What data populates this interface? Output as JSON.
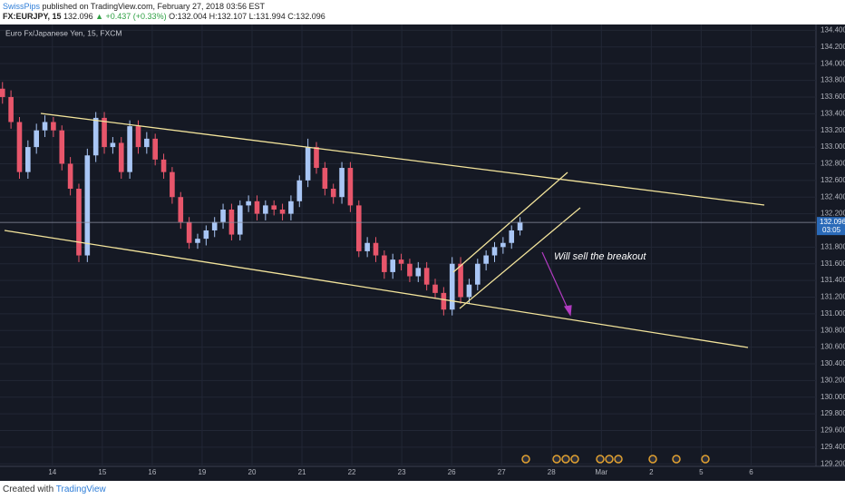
{
  "header": {
    "author": "SwissPips",
    "published": "published on TradingView.com, February 27, 2018 03:56 EST",
    "symbol": "FX:EURJPY, 15",
    "price": "132.096",
    "change": "▲ +0.437 (+0.33%)",
    "ohlc": "O:132.004 H:132.107 L:131.994 C:132.096"
  },
  "footer": {
    "text": "Created with",
    "brand": "TradingView"
  },
  "chart_data": {
    "type": "candlestick",
    "title": "Euro Fx/Japanese Yen, 15, FXCM",
    "annotation": "Will sell the breakout",
    "up_color": "#a9c6f5",
    "down_color": "#e8566b",
    "grid": true,
    "last_price": {
      "value": 132.096,
      "label": "132.096"
    },
    "countdown": "03:05",
    "xlim": [
      -0.05,
      16.3
    ],
    "ylim": [
      129.17,
      134.47
    ],
    "xticks": [
      {
        "value": 1,
        "label": "14"
      },
      {
        "value": 2,
        "label": "15"
      },
      {
        "value": 3,
        "label": "16"
      },
      {
        "value": 4,
        "label": "19"
      },
      {
        "value": 5,
        "label": "20"
      },
      {
        "value": 6,
        "label": "21"
      },
      {
        "value": 7,
        "label": "22"
      },
      {
        "value": 8,
        "label": "23"
      },
      {
        "value": 9,
        "label": "26"
      },
      {
        "value": 10,
        "label": "27"
      },
      {
        "value": 11,
        "label": "28"
      },
      {
        "value": 12,
        "label": "Mar"
      },
      {
        "value": 13,
        "label": "2"
      },
      {
        "value": 14,
        "label": "5"
      },
      {
        "value": 15,
        "label": "6"
      }
    ],
    "yticks": [
      {
        "value": 134.4,
        "label": "134.400"
      },
      {
        "value": 134.2,
        "label": "134.200"
      },
      {
        "value": 134.0,
        "label": "134.000"
      },
      {
        "value": 133.8,
        "label": "133.800"
      },
      {
        "value": 133.6,
        "label": "133.600"
      },
      {
        "value": 133.4,
        "label": "133.400"
      },
      {
        "value": 133.2,
        "label": "133.200"
      },
      {
        "value": 133.0,
        "label": "133.000"
      },
      {
        "value": 132.8,
        "label": "132.800"
      },
      {
        "value": 132.6,
        "label": "132.600"
      },
      {
        "value": 132.4,
        "label": "132.400"
      },
      {
        "value": 132.2,
        "label": "132.200"
      },
      {
        "value": 131.8,
        "label": "131.800"
      },
      {
        "value": 131.6,
        "label": "131.600"
      },
      {
        "value": 131.4,
        "label": "131.400"
      },
      {
        "value": 131.2,
        "label": "131.200"
      },
      {
        "value": 131.0,
        "label": "131.000"
      },
      {
        "value": 130.8,
        "label": "130.800"
      },
      {
        "value": 130.6,
        "label": "130.600"
      },
      {
        "value": 130.4,
        "label": "130.400"
      },
      {
        "value": 130.2,
        "label": "130.200"
      },
      {
        "value": 130.0,
        "label": "130.000"
      },
      {
        "value": 129.8,
        "label": "129.800"
      },
      {
        "value": 129.6,
        "label": "129.600"
      },
      {
        "value": 129.4,
        "label": "129.400"
      },
      {
        "value": 129.2,
        "label": "129.200"
      }
    ],
    "x": [
      0,
      0.17,
      0.34,
      0.51,
      0.68,
      0.85,
      1.02,
      1.19,
      1.36,
      1.53,
      1.7,
      1.87,
      2.04,
      2.21,
      2.38,
      2.55,
      2.72,
      2.89,
      3.06,
      3.23,
      3.4,
      3.57,
      3.74,
      3.91,
      4.08,
      4.25,
      4.42,
      4.59,
      4.76,
      4.93,
      5.1,
      5.27,
      5.44,
      5.61,
      5.78,
      5.95,
      6.12,
      6.29,
      6.46,
      6.63,
      6.8,
      6.97,
      7.14,
      7.31,
      7.48,
      7.65,
      7.82,
      7.99,
      8.16,
      8.33,
      8.5,
      8.67,
      8.84,
      9.01,
      9.18,
      9.35,
      9.52,
      9.69,
      9.86,
      10.03,
      10.2,
      10.37
    ],
    "open": [
      133.7,
      133.6,
      133.3,
      132.7,
      133.0,
      133.2,
      133.3,
      133.2,
      132.8,
      132.5,
      131.7,
      132.9,
      133.35,
      133.0,
      133.05,
      132.7,
      133.25,
      133.0,
      133.1,
      132.85,
      132.7,
      132.4,
      132.1,
      131.85,
      131.9,
      132.0,
      132.1,
      132.25,
      131.95,
      132.3,
      132.35,
      132.2,
      132.3,
      132.25,
      132.2,
      132.35,
      132.6,
      133.0,
      132.75,
      132.5,
      132.4,
      132.75,
      132.3,
      131.75,
      131.85,
      131.7,
      131.5,
      131.65,
      131.6,
      131.45,
      131.55,
      131.35,
      131.25,
      131.05,
      131.6,
      131.2,
      131.35,
      131.6,
      131.7,
      131.8,
      131.85,
      132.0
    ],
    "high": [
      133.78,
      133.68,
      133.36,
      133.08,
      133.28,
      133.38,
      133.36,
      133.26,
      132.88,
      132.56,
      132.98,
      133.42,
      133.42,
      133.12,
      133.12,
      133.32,
      133.32,
      133.18,
      133.16,
      132.92,
      132.76,
      132.46,
      132.16,
      131.96,
      132.06,
      132.16,
      132.32,
      132.32,
      132.36,
      132.42,
      132.42,
      132.36,
      132.36,
      132.32,
      132.42,
      132.66,
      133.1,
      133.06,
      132.82,
      132.56,
      132.82,
      132.82,
      132.36,
      131.92,
      131.92,
      131.76,
      131.72,
      131.72,
      131.66,
      131.62,
      131.62,
      131.42,
      131.32,
      131.68,
      131.68,
      131.42,
      131.66,
      131.76,
      131.86,
      131.92,
      132.06,
      132.16
    ],
    "low": [
      133.52,
      133.22,
      132.62,
      132.62,
      132.92,
      133.12,
      133.12,
      132.72,
      132.42,
      131.62,
      131.62,
      132.82,
      132.92,
      132.92,
      132.62,
      132.62,
      132.92,
      132.92,
      132.78,
      132.62,
      132.32,
      132.02,
      131.78,
      131.78,
      131.82,
      131.92,
      132.02,
      131.88,
      131.88,
      132.22,
      132.12,
      132.12,
      132.18,
      132.12,
      132.12,
      132.28,
      132.52,
      132.68,
      132.42,
      132.32,
      132.32,
      132.22,
      131.68,
      131.68,
      131.62,
      131.42,
      131.42,
      131.52,
      131.38,
      131.38,
      131.28,
      131.18,
      130.98,
      130.98,
      131.12,
      131.12,
      131.28,
      131.52,
      131.62,
      131.72,
      131.78,
      131.94
    ],
    "close": [
      133.6,
      133.3,
      132.7,
      133.0,
      133.2,
      133.3,
      133.2,
      132.8,
      132.5,
      131.7,
      132.9,
      133.35,
      133.0,
      133.05,
      132.7,
      133.25,
      133.0,
      133.1,
      132.85,
      132.7,
      132.4,
      132.1,
      131.85,
      131.9,
      132.0,
      132.1,
      132.25,
      131.95,
      132.3,
      132.35,
      132.2,
      132.3,
      132.25,
      132.2,
      132.35,
      132.6,
      133.0,
      132.75,
      132.5,
      132.4,
      132.75,
      132.3,
      131.75,
      131.85,
      131.7,
      131.5,
      131.65,
      131.6,
      131.45,
      131.55,
      131.35,
      131.25,
      131.05,
      131.6,
      131.2,
      131.35,
      131.6,
      131.7,
      131.8,
      131.85,
      132.0,
      132.1
    ]
  }
}
